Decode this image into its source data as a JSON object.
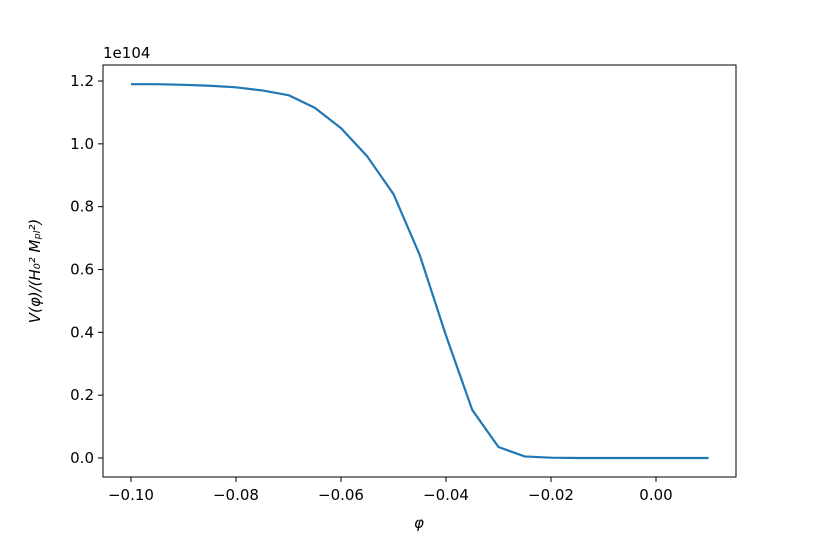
{
  "chart_data": {
    "type": "line",
    "x_label": "φ",
    "y_label": "V(φ)/(H₀² Mₚₗ²)",
    "y_offset_label": "1e104",
    "x": [
      -0.1,
      -0.095,
      -0.09,
      -0.085,
      -0.08,
      -0.075,
      -0.07,
      -0.065,
      -0.06,
      -0.055,
      -0.05,
      -0.045,
      -0.04,
      -0.035,
      -0.03,
      -0.025,
      -0.02,
      -0.015,
      -0.01,
      -0.005,
      0,
      0.005,
      0.01
    ],
    "series": [
      {
        "name": "V",
        "color": "#1f77b4",
        "values": [
          1.19,
          1.19,
          1.188,
          1.185,
          1.18,
          1.17,
          1.155,
          1.115,
          1.05,
          0.96,
          0.84,
          0.646,
          0.39,
          0.153,
          0.035,
          0.005,
          0.001,
          0,
          0,
          0,
          0,
          0,
          0
        ]
      }
    ],
    "xlim": [
      -0.10533,
      0.01524
    ],
    "ylim": [
      -0.0605,
      1.251
    ],
    "xticks": [
      {
        "value": -0.1,
        "label": "−0.10"
      },
      {
        "value": -0.08,
        "label": "−0.08"
      },
      {
        "value": -0.06,
        "label": "−0.06"
      },
      {
        "value": -0.04,
        "label": "−0.04"
      },
      {
        "value": -0.02,
        "label": "−0.02"
      },
      {
        "value": 0,
        "label": "0.00"
      }
    ],
    "yticks": [
      {
        "value": 0,
        "label": "0.0"
      },
      0.2,
      0.4,
      0.6,
      0.8,
      {
        "value": 1,
        "label": "1.0"
      },
      1.2
    ],
    "grid": false
  }
}
